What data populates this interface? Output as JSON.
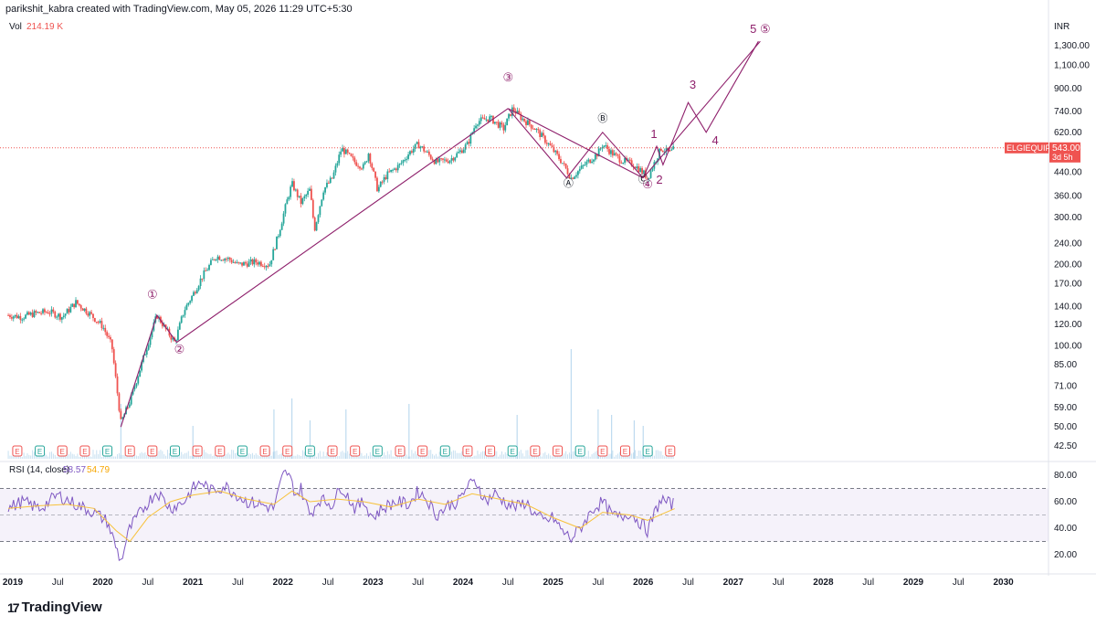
{
  "header": {
    "text": "parikshit_kabra created with TradingView.com, May 05, 2026 11:29 UTC+5:30"
  },
  "currency": "INR",
  "volume": {
    "label": "Vol",
    "value": "214.19 K"
  },
  "rsi": {
    "label": "RSI (14, close)",
    "value": "58.57",
    "ma_value": "54.79"
  },
  "price_tag": {
    "symbol": "ELGIEQUIP",
    "price": "543.00",
    "countdown": "3d 5h"
  },
  "logo": {
    "text": "TradingView"
  },
  "colors": {
    "up": "#26a69a",
    "down": "#ef5350",
    "wave": "#8e1f6b",
    "rsi": "#7e57c2",
    "rsi_ma": "#f7c23b",
    "price_line": "#ef5350"
  },
  "chart_data": {
    "type": "line",
    "y_scale": "log",
    "ylim": [
      38,
      1600
    ],
    "price_ticks": [
      "1,300.00",
      "1,100.00",
      "900.00",
      "740.00",
      "620.00",
      "440.00",
      "360.00",
      "300.00",
      "240.00",
      "200.00",
      "170.00",
      "140.00",
      "120.00",
      "100.00",
      "85.00",
      "71.00",
      "59.00",
      "50.00",
      "42.50"
    ],
    "price_tick_values": [
      1300,
      1100,
      900,
      740,
      620,
      440,
      360,
      300,
      240,
      200,
      170,
      140,
      120,
      100,
      85,
      71,
      59,
      50,
      42.5
    ],
    "rsi_ticks": [
      "80.00",
      "60.00",
      "40.00",
      "20.00"
    ],
    "rsi_tick_values": [
      80,
      60,
      40,
      20
    ],
    "time_labels": [
      {
        "t": "2019",
        "x": 2019.0,
        "major": true
      },
      {
        "t": "Jul",
        "x": 2019.5,
        "major": false
      },
      {
        "t": "2020",
        "x": 2020.0,
        "major": true
      },
      {
        "t": "Jul",
        "x": 2020.5,
        "major": false
      },
      {
        "t": "2021",
        "x": 2021.0,
        "major": true
      },
      {
        "t": "Jul",
        "x": 2021.5,
        "major": false
      },
      {
        "t": "2022",
        "x": 2022.0,
        "major": true
      },
      {
        "t": "Jul",
        "x": 2022.5,
        "major": false
      },
      {
        "t": "2023",
        "x": 2023.0,
        "major": true
      },
      {
        "t": "Jul",
        "x": 2023.5,
        "major": false
      },
      {
        "t": "2024",
        "x": 2024.0,
        "major": true
      },
      {
        "t": "Jul",
        "x": 2024.5,
        "major": false
      },
      {
        "t": "2025",
        "x": 2025.0,
        "major": true
      },
      {
        "t": "Jul",
        "x": 2025.5,
        "major": false
      },
      {
        "t": "2026",
        "x": 2026.0,
        "major": true
      },
      {
        "t": "Jul",
        "x": 2026.5,
        "major": false
      },
      {
        "t": "2027",
        "x": 2027.0,
        "major": true
      },
      {
        "t": "Jul",
        "x": 2027.5,
        "major": false
      },
      {
        "t": "2028",
        "x": 2028.0,
        "major": true
      },
      {
        "t": "Jul",
        "x": 2028.5,
        "major": false
      },
      {
        "t": "2029",
        "x": 2029.0,
        "major": true
      },
      {
        "t": "Jul",
        "x": 2029.5,
        "major": false
      },
      {
        "t": "2030",
        "x": 2030.0,
        "major": true
      },
      {
        "t": "Jul",
        "x": 2030.5,
        "major": false
      }
    ],
    "price_path": [
      [
        2018.95,
        130
      ],
      [
        2019.1,
        128
      ],
      [
        2019.25,
        132
      ],
      [
        2019.4,
        134
      ],
      [
        2019.55,
        128
      ],
      [
        2019.7,
        145
      ],
      [
        2019.85,
        132
      ],
      [
        2020.0,
        118
      ],
      [
        2020.1,
        100
      ],
      [
        2020.2,
        52
      ],
      [
        2020.3,
        62
      ],
      [
        2020.45,
        90
      ],
      [
        2020.6,
        130
      ],
      [
        2020.7,
        115
      ],
      [
        2020.8,
        103
      ],
      [
        2020.9,
        135
      ],
      [
        2021.0,
        155
      ],
      [
        2021.1,
        180
      ],
      [
        2021.25,
        215
      ],
      [
        2021.4,
        210
      ],
      [
        2021.5,
        200
      ],
      [
        2021.7,
        205
      ],
      [
        2021.85,
        200
      ],
      [
        2021.95,
        260
      ],
      [
        2022.05,
        350
      ],
      [
        2022.1,
        400
      ],
      [
        2022.2,
        340
      ],
      [
        2022.3,
        380
      ],
      [
        2022.35,
        270
      ],
      [
        2022.45,
        380
      ],
      [
        2022.55,
        420
      ],
      [
        2022.65,
        540
      ],
      [
        2022.7,
        520
      ],
      [
        2022.8,
        480
      ],
      [
        2022.9,
        460
      ],
      [
        2022.95,
        520
      ],
      [
        2023.05,
        380
      ],
      [
        2023.15,
        430
      ],
      [
        2023.3,
        470
      ],
      [
        2023.4,
        520
      ],
      [
        2023.5,
        560
      ],
      [
        2023.55,
        540
      ],
      [
        2023.7,
        480
      ],
      [
        2023.85,
        490
      ],
      [
        2023.95,
        520
      ],
      [
        2024.05,
        560
      ],
      [
        2024.15,
        680
      ],
      [
        2024.3,
        700
      ],
      [
        2024.45,
        640
      ],
      [
        2024.55,
        760
      ],
      [
        2024.65,
        700
      ],
      [
        2024.8,
        640
      ],
      [
        2024.95,
        560
      ],
      [
        2025.1,
        480
      ],
      [
        2025.2,
        420
      ],
      [
        2025.35,
        470
      ],
      [
        2025.5,
        520
      ],
      [
        2025.55,
        560
      ],
      [
        2025.65,
        520
      ],
      [
        2025.75,
        490
      ],
      [
        2025.9,
        470
      ],
      [
        2026.0,
        440
      ],
      [
        2026.05,
        420
      ],
      [
        2026.15,
        500
      ],
      [
        2026.2,
        540
      ],
      [
        2026.3,
        520
      ],
      [
        2026.35,
        543
      ]
    ],
    "volume_spikes": [
      [
        2020.2,
        0.5
      ],
      [
        2021.0,
        0.3
      ],
      [
        2021.9,
        0.45
      ],
      [
        2022.1,
        0.55
      ],
      [
        2022.3,
        0.35
      ],
      [
        2022.7,
        0.45
      ],
      [
        2023.4,
        0.5
      ],
      [
        2024.6,
        0.4
      ],
      [
        2025.2,
        1.0
      ],
      [
        2025.5,
        0.45
      ],
      [
        2025.65,
        0.4
      ],
      [
        2025.9,
        0.35
      ],
      [
        2026.0,
        0.3
      ]
    ],
    "rsi_path": [
      [
        2018.95,
        55
      ],
      [
        2019.1,
        60
      ],
      [
        2019.3,
        55
      ],
      [
        2019.5,
        65
      ],
      [
        2019.7,
        58
      ],
      [
        2019.9,
        52
      ],
      [
        2020.05,
        45
      ],
      [
        2020.15,
        25
      ],
      [
        2020.2,
        15
      ],
      [
        2020.3,
        40
      ],
      [
        2020.45,
        55
      ],
      [
        2020.6,
        68
      ],
      [
        2020.75,
        55
      ],
      [
        2020.9,
        60
      ],
      [
        2021.0,
        70
      ],
      [
        2021.1,
        75
      ],
      [
        2021.2,
        68
      ],
      [
        2021.35,
        72
      ],
      [
        2021.5,
        65
      ],
      [
        2021.6,
        60
      ],
      [
        2021.75,
        58
      ],
      [
        2021.9,
        55
      ],
      [
        2022.0,
        80
      ],
      [
        2022.05,
        82
      ],
      [
        2022.15,
        65
      ],
      [
        2022.2,
        70
      ],
      [
        2022.3,
        50
      ],
      [
        2022.4,
        62
      ],
      [
        2022.55,
        58
      ],
      [
        2022.65,
        72
      ],
      [
        2022.8,
        55
      ],
      [
        2022.9,
        60
      ],
      [
        2023.0,
        48
      ],
      [
        2023.1,
        55
      ],
      [
        2023.25,
        60
      ],
      [
        2023.4,
        58
      ],
      [
        2023.5,
        68
      ],
      [
        2023.6,
        62
      ],
      [
        2023.7,
        50
      ],
      [
        2023.85,
        58
      ],
      [
        2023.95,
        60
      ],
      [
        2024.05,
        72
      ],
      [
        2024.15,
        75
      ],
      [
        2024.25,
        60
      ],
      [
        2024.35,
        66
      ],
      [
        2024.5,
        58
      ],
      [
        2024.6,
        56
      ],
      [
        2024.7,
        60
      ],
      [
        2024.8,
        50
      ],
      [
        2024.9,
        45
      ],
      [
        2025.0,
        48
      ],
      [
        2025.1,
        38
      ],
      [
        2025.2,
        32
      ],
      [
        2025.3,
        40
      ],
      [
        2025.45,
        55
      ],
      [
        2025.55,
        60
      ],
      [
        2025.65,
        50
      ],
      [
        2025.75,
        48
      ],
      [
        2025.85,
        52
      ],
      [
        2026.0,
        42
      ],
      [
        2026.05,
        38
      ],
      [
        2026.15,
        55
      ],
      [
        2026.2,
        62
      ],
      [
        2026.3,
        58
      ],
      [
        2026.35,
        58.57
      ]
    ],
    "rsi_ma_path": [
      [
        2018.95,
        55
      ],
      [
        2019.3,
        57
      ],
      [
        2019.6,
        58
      ],
      [
        2019.9,
        55
      ],
      [
        2020.15,
        38
      ],
      [
        2020.3,
        30
      ],
      [
        2020.5,
        48
      ],
      [
        2020.75,
        60
      ],
      [
        2021.0,
        65
      ],
      [
        2021.3,
        68
      ],
      [
        2021.6,
        62
      ],
      [
        2021.9,
        58
      ],
      [
        2022.1,
        68
      ],
      [
        2022.3,
        60
      ],
      [
        2022.6,
        62
      ],
      [
        2022.9,
        60
      ],
      [
        2023.2,
        56
      ],
      [
        2023.5,
        62
      ],
      [
        2023.8,
        58
      ],
      [
        2024.1,
        66
      ],
      [
        2024.4,
        62
      ],
      [
        2024.7,
        58
      ],
      [
        2025.0,
        48
      ],
      [
        2025.3,
        40
      ],
      [
        2025.55,
        52
      ],
      [
        2025.85,
        50
      ],
      [
        2026.05,
        46
      ],
      [
        2026.35,
        54.79
      ]
    ],
    "wave_labels": [
      {
        "text": "①",
        "x": 2020.55,
        "price": 150
      },
      {
        "text": "②",
        "x": 2020.85,
        "price": 94
      },
      {
        "text": "③",
        "x": 2024.5,
        "price": 960
      },
      {
        "text": "④",
        "x": 2026.05,
        "price": 385
      },
      {
        "text": "1",
        "x": 2026.12,
        "price": 590
      },
      {
        "text": "2",
        "x": 2026.18,
        "price": 400
      },
      {
        "text": "3",
        "x": 2026.55,
        "price": 900
      },
      {
        "text": "4",
        "x": 2026.8,
        "price": 560
      },
      {
        "text": "5 ⑤",
        "x": 2027.3,
        "price": 1450
      }
    ],
    "abc_labels": [
      {
        "text": "Ⓐ",
        "x": 2025.17,
        "price": 390
      },
      {
        "text": "Ⓑ",
        "x": 2025.55,
        "price": 680
      },
      {
        "text": "Ⓒ",
        "x": 2026.0,
        "price": 405
      }
    ],
    "wave_lines": [
      [
        [
          2020.2,
          50
        ],
        [
          2020.6,
          130
        ],
        [
          2020.82,
          103
        ],
        [
          2024.5,
          760
        ]
      ],
      [
        [
          2024.5,
          760
        ],
        [
          2025.15,
          420
        ],
        [
          2025.55,
          620
        ],
        [
          2026.0,
          420
        ]
      ],
      [
        [
          2024.5,
          760
        ],
        [
          2026.0,
          420
        ]
      ],
      [
        [
          2026.0,
          420
        ],
        [
          2026.15,
          550
        ],
        [
          2026.22,
          470
        ],
        [
          2026.5,
          800
        ],
        [
          2026.7,
          620
        ],
        [
          2027.28,
          1350
        ]
      ],
      [
        [
          2026.0,
          420
        ],
        [
          2027.3,
          1350
        ]
      ]
    ],
    "current_price": 543
  }
}
